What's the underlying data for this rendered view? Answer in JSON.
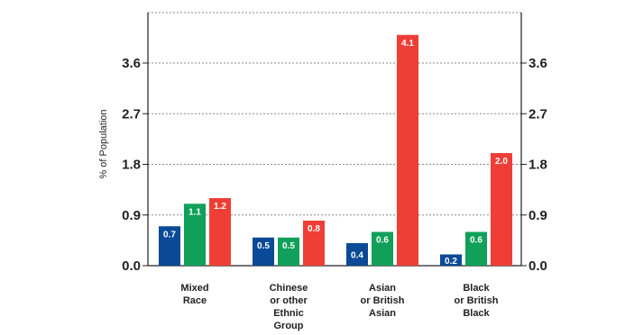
{
  "chart_data": {
    "type": "bar",
    "title": "",
    "xlabel": "",
    "ylabel": "% of Population",
    "ylim": [
      0,
      4.5
    ],
    "yticks": [
      "0.0",
      "0.9",
      "1.8",
      "2.7",
      "3.6"
    ],
    "grid": true,
    "categories": [
      [
        "Mixed",
        "Race"
      ],
      [
        "Chinese",
        "or other",
        "Ethnic",
        "Group"
      ],
      [
        "Asian",
        "or British",
        "Asian"
      ],
      [
        "Black",
        "or British",
        "Black"
      ]
    ],
    "series": [
      {
        "color": "#0a4a97",
        "values": [
          0.7,
          0.5,
          0.4,
          0.2
        ],
        "labels": [
          "0.7",
          "0.5",
          "0.4",
          "0.2"
        ]
      },
      {
        "color": "#10a05a",
        "values": [
          1.1,
          0.5,
          0.6,
          0.6
        ],
        "labels": [
          "1.1",
          "0.5",
          "0.6",
          "0.6"
        ]
      },
      {
        "color": "#ef3e36",
        "values": [
          1.2,
          0.8,
          4.1,
          2.0
        ],
        "labels": [
          "1.2",
          "0.8",
          "4.1",
          "2.0"
        ]
      }
    ]
  }
}
